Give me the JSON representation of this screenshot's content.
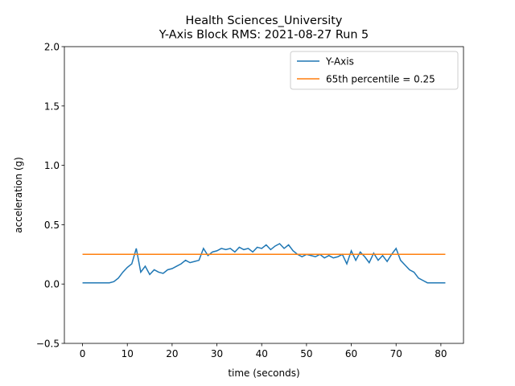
{
  "chart_data": {
    "type": "line",
    "title": "Health Sciences_University\nY-Axis Block RMS: 2021-08-27 Run 5",
    "x_label": "time (seconds)",
    "y_label": "acceleration (g)",
    "xlim": [
      -4.05,
      85.05
    ],
    "ylim": [
      -0.5,
      2.0
    ],
    "xticks": [
      0,
      10,
      20,
      30,
      40,
      50,
      60,
      70,
      80
    ],
    "yticks": [
      {
        "value": -0.5,
        "label": "−0.5"
      },
      {
        "value": 0,
        "label": "0.0"
      },
      0.5,
      {
        "value": 1,
        "label": "1.0"
      },
      1.5,
      {
        "value": 2,
        "label": "2.0"
      }
    ],
    "legend": "upper right",
    "series": [
      {
        "name": "Y-Axis",
        "color": "#1f77b4",
        "x": [
          0,
          1,
          2,
          3,
          4,
          5,
          6,
          7,
          8,
          9,
          10,
          11,
          12,
          13,
          14,
          15,
          16,
          17,
          18,
          19,
          20,
          21,
          22,
          23,
          24,
          25,
          26,
          27,
          28,
          29,
          30,
          31,
          32,
          33,
          34,
          35,
          36,
          37,
          38,
          39,
          40,
          41,
          42,
          43,
          44,
          45,
          46,
          47,
          48,
          49,
          50,
          51,
          52,
          53,
          54,
          55,
          56,
          57,
          58,
          59,
          60,
          61,
          62,
          63,
          64,
          65,
          66,
          67,
          68,
          69,
          70,
          71,
          72,
          73,
          74,
          75,
          76,
          77,
          78,
          79,
          80,
          81
        ],
        "values": [
          0.01,
          0.01,
          0.01,
          0.01,
          0.01,
          0.01,
          0.01,
          0.02,
          0.05,
          0.1,
          0.14,
          0.17,
          0.3,
          0.1,
          0.15,
          0.08,
          0.12,
          0.1,
          0.09,
          0.12,
          0.13,
          0.15,
          0.17,
          0.2,
          0.18,
          0.19,
          0.2,
          0.3,
          0.24,
          0.27,
          0.28,
          0.3,
          0.29,
          0.3,
          0.27,
          0.31,
          0.29,
          0.3,
          0.27,
          0.31,
          0.3,
          0.33,
          0.29,
          0.32,
          0.34,
          0.3,
          0.33,
          0.28,
          0.25,
          0.23,
          0.25,
          0.24,
          0.23,
          0.25,
          0.22,
          0.24,
          0.22,
          0.23,
          0.25,
          0.17,
          0.28,
          0.2,
          0.27,
          0.23,
          0.18,
          0.26,
          0.2,
          0.24,
          0.19,
          0.25,
          0.3,
          0.2,
          0.16,
          0.12,
          0.1,
          0.05,
          0.03,
          0.01,
          0.01,
          0.01,
          0.01,
          0.01
        ]
      },
      {
        "name": "65th percentile = 0.25",
        "color": "#ff7f0e",
        "x": [
          0,
          81
        ],
        "values": [
          0.25,
          0.25
        ]
      }
    ]
  }
}
